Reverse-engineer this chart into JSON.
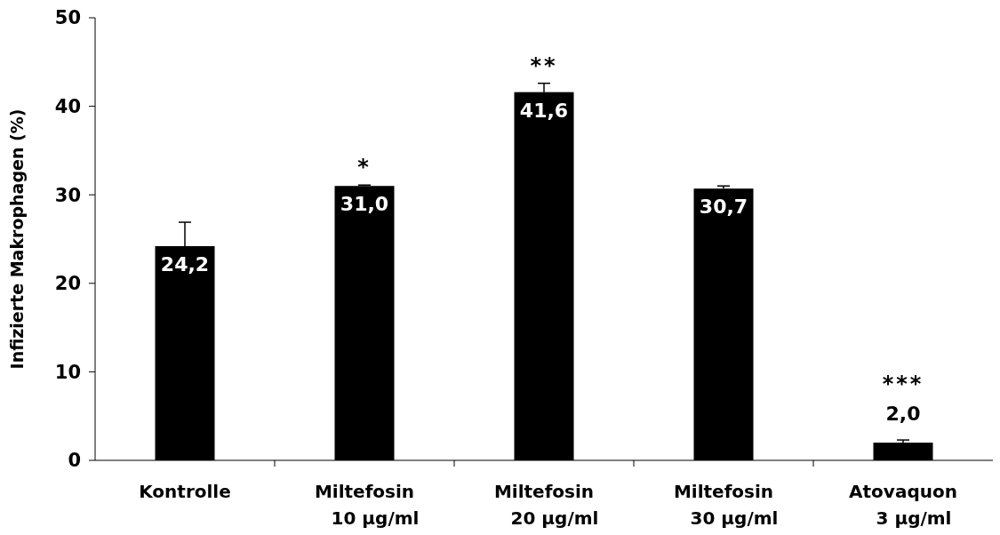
{
  "chart_data": {
    "type": "bar",
    "ylabel": "Infizierte Makrophagen (%)",
    "categories": [
      "Kontrolle",
      "Miltefosin\n10 µg/ml",
      "Miltefosin\n20 µg/ml",
      "Miltefosin\n30 µg/ml",
      "Atovaquon\n3 µg/ml"
    ],
    "values": [
      24.2,
      31.0,
      41.6,
      30.7,
      2.0
    ],
    "value_labels": [
      "24,2",
      "31,0",
      "41,6",
      "30,7",
      "2,0"
    ],
    "errors": [
      [
        24.2,
        26.9
      ],
      [
        31.0,
        31.1
      ],
      [
        41.6,
        42.6
      ],
      [
        30.7,
        31.0
      ],
      [
        2.0,
        2.3
      ]
    ],
    "color": "#000000",
    "ylim": [
      0,
      50
    ],
    "yticks": [
      0,
      10,
      20,
      30,
      40,
      50
    ],
    "annotations": [
      {
        "text": "*",
        "x": "Miltefosin\n10 µg/ml",
        "y": 31.1
      },
      {
        "text": "**",
        "x": "Miltefosin\n20 µg/ml",
        "y": 42.6
      },
      {
        "text": "***",
        "x": "Atovaquon\n3 µg/ml",
        "y": 2.3
      }
    ]
  }
}
